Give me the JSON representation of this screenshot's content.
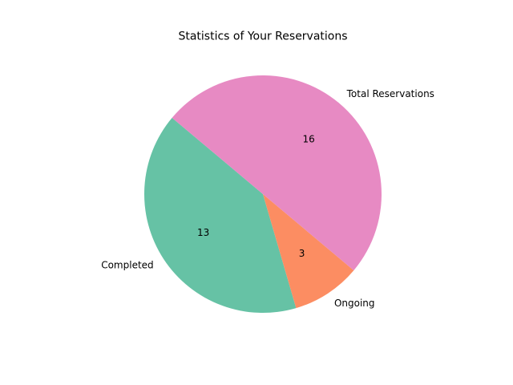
{
  "chart_data": {
    "type": "pie",
    "title": "Statistics of Your Reservations",
    "categories": [
      "Completed",
      "Ongoing",
      "Total Reservations"
    ],
    "values": [
      13,
      3,
      16
    ],
    "value_labels": [
      "13",
      "3",
      "16"
    ],
    "colors": [
      "#66c2a5",
      "#fc8d62",
      "#e78ac3"
    ],
    "start_angle_deg": 140,
    "direction": "counterclockwise",
    "legend": "none",
    "grid": false
  }
}
